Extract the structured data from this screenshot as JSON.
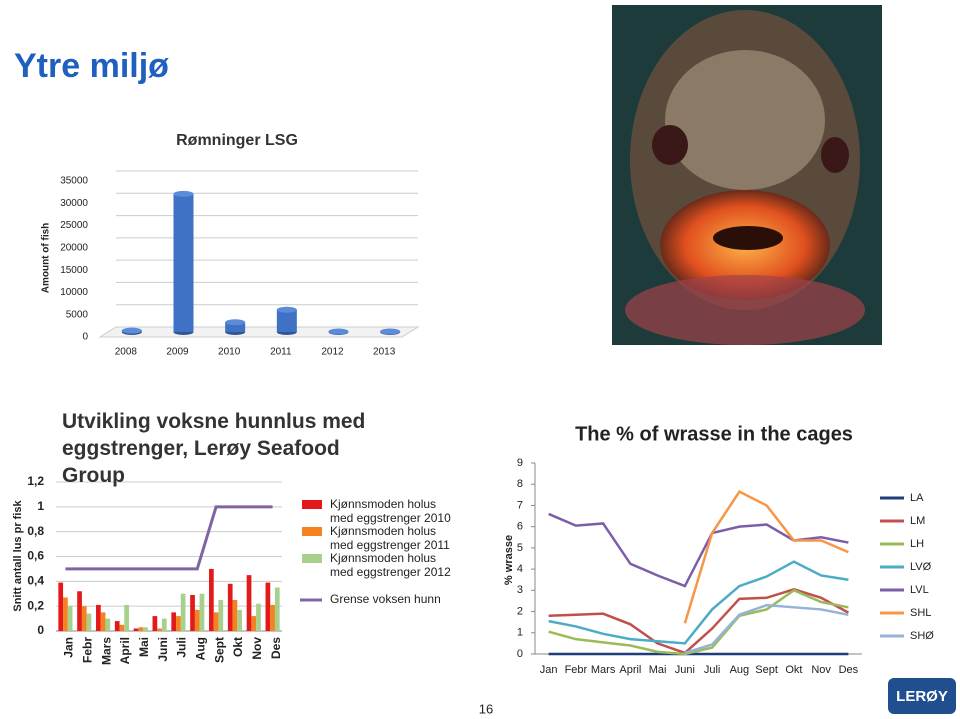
{
  "slide": {
    "title": "Ytre miljø",
    "page_number": "16",
    "logo": "LERØY"
  },
  "chart_data": [
    {
      "type": "bar3d",
      "title": "Rømninger LSG",
      "y_label": "Amount of fish",
      "categories": [
        "2008",
        "2009",
        "2010",
        "2011",
        "2012",
        "2013"
      ],
      "values": [
        300,
        31000,
        2200,
        5000,
        100,
        100
      ],
      "color": "#3f72c4",
      "ylim": [
        0,
        35000
      ],
      "yticks": [
        0,
        5000,
        10000,
        15000,
        20000,
        25000,
        30000,
        35000
      ],
      "grid": true
    },
    {
      "type": "bar",
      "title": "Utvikling voksne hunnlus med eggstrenger, Lerøy Seafood Group",
      "y_label": "Snitt antall lus pr fisk",
      "categories": [
        "Jan",
        "Febr",
        "Mars",
        "April",
        "Mai",
        "Juni",
        "Juli",
        "Aug",
        "Sept",
        "Okt",
        "Nov",
        "Des"
      ],
      "series": [
        {
          "name": "Kjønnsmoden holus med eggstrenger 2010",
          "color": "#e31a1c",
          "values": [
            0.39,
            0.32,
            0.21,
            0.08,
            0.02,
            0.12,
            0.15,
            0.29,
            0.5,
            0.38,
            0.45,
            0.39
          ]
        },
        {
          "name": "Kjønnsmoden holus med eggstrenger 2011",
          "color": "#f58220",
          "values": [
            0.27,
            0.2,
            0.15,
            0.05,
            0.03,
            0.02,
            0.12,
            0.17,
            0.15,
            0.25,
            0.12,
            0.21
          ]
        },
        {
          "name": "Kjønnsmoden holus med eggstrenger 2012",
          "color": "#a8d08d",
          "values": [
            0.2,
            0.14,
            0.1,
            0.21,
            0.03,
            0.1,
            0.3,
            0.3,
            0.25,
            0.17,
            0.22,
            0.35
          ]
        },
        {
          "name": "Grense voksen hunn",
          "color": "#8064a2",
          "type": "line",
          "values": [
            0.5,
            0.5,
            0.5,
            0.5,
            0.5,
            0.5,
            0.5,
            0.5,
            1,
            1,
            1,
            1
          ]
        }
      ],
      "ylim": [
        0,
        1.2
      ],
      "yticks": [
        0,
        {
          "value": 0.2,
          "label": "0,2"
        },
        {
          "value": 0.4,
          "label": "0,4"
        },
        {
          "value": 0.6,
          "label": "0,6"
        },
        {
          "value": 0.8,
          "label": "0,8"
        },
        1,
        {
          "value": 1.2,
          "label": "1,2"
        }
      ],
      "grid": true
    },
    {
      "type": "line",
      "title": "The % of wrasse in the cages",
      "y_label": "% wrasse",
      "categories": [
        "Jan",
        "Febr",
        "Mars",
        "April",
        "Mai",
        "Juni",
        "Juli",
        "Aug",
        "Sept",
        "Okt",
        "Nov",
        "Des"
      ],
      "series": [
        {
          "name": "LA",
          "color": "#1f3d7a",
          "values": [
            0,
            0,
            0,
            0,
            0,
            0,
            0,
            0,
            0,
            0,
            0,
            0
          ]
        },
        {
          "name": "LM",
          "color": "#c0504d",
          "values": [
            1.8,
            1.85,
            1.9,
            1.4,
            0.5,
            0.05,
            1.2,
            2.6,
            2.65,
            3.05,
            2.65,
            1.95
          ]
        },
        {
          "name": "LH",
          "color": "#9bbb59",
          "values": [
            1.05,
            0.7,
            0.55,
            0.4,
            0.1,
            0,
            0.3,
            1.8,
            2.1,
            3,
            2.45,
            2.2
          ]
        },
        {
          "name": "LVØ",
          "color": "#4bacc6",
          "values": [
            1.55,
            1.3,
            0.95,
            0.7,
            0.6,
            0.5,
            2.1,
            3.2,
            3.65,
            4.35,
            3.7,
            3.5
          ]
        },
        {
          "name": "LVL",
          "color": "#7b5ea7",
          "values": [
            6.6,
            6.05,
            6.15,
            4.25,
            3.7,
            3.2,
            5.7,
            6,
            6.1,
            5.35,
            5.5,
            5.25
          ]
        },
        {
          "name": "SHL",
          "color": "#f79646",
          "values": [
            null,
            null,
            null,
            null,
            null,
            1.45,
            5.7,
            7.65,
            7,
            5.35,
            5.35,
            4.8
          ]
        },
        {
          "name": "SHØ",
          "color": "#95b3d7",
          "values": [
            null,
            null,
            null,
            null,
            null,
            0.05,
            0.45,
            1.85,
            2.3,
            2.2,
            2.1,
            1.85
          ]
        }
      ],
      "ylim": [
        0,
        9
      ],
      "yticks": [
        0,
        1,
        2,
        3,
        4,
        5,
        6,
        7,
        8,
        9
      ],
      "grid": false
    }
  ]
}
